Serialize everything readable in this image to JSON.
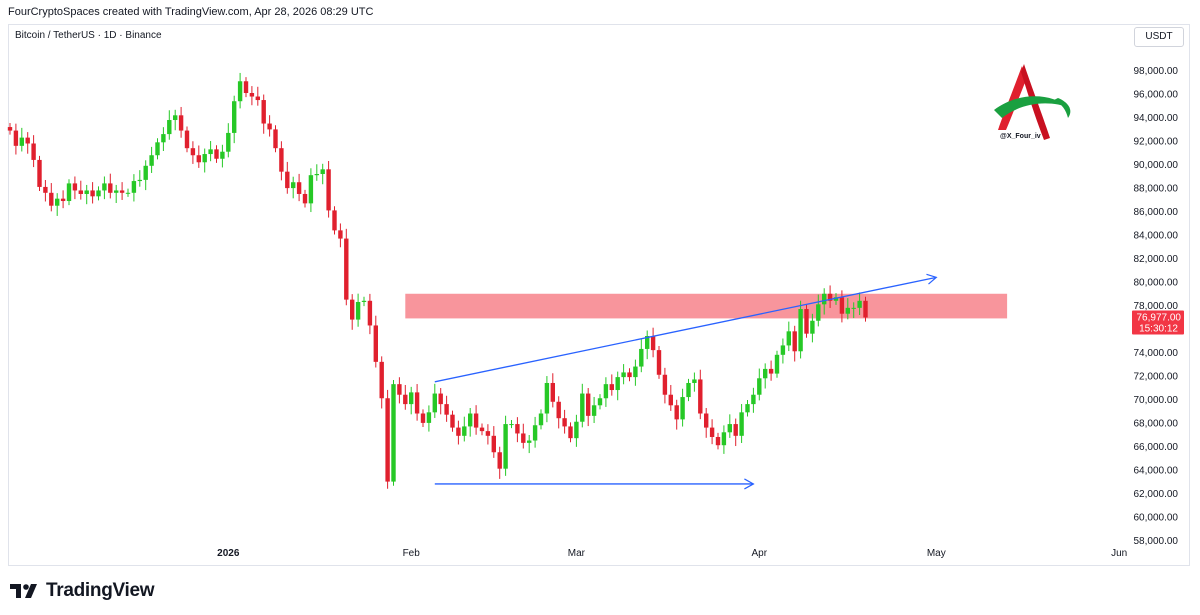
{
  "header": {
    "title": "FourCryptoSpaces created with TradingView.com, Apr 28, 2026 08:29 UTC"
  },
  "symbol_line": "Bitcoin / TetherUS · 1D · Binance",
  "currency": "USDT",
  "watermark": {
    "handle": "@X_Four_iv"
  },
  "footer": {
    "brand": "TradingView"
  },
  "colors": {
    "up": "#26c826",
    "down": "#e0202e",
    "trend": "#2962ff",
    "zone": "#f7838b",
    "price_tag": "#f23645"
  },
  "chart_data": {
    "type": "candlestick",
    "symbol": "BTCUSDT",
    "interval": "1D",
    "ylim": [
      58000,
      99000
    ],
    "y_ticks": [
      "98,000.00",
      "96,000.00",
      "94,000.00",
      "92,000.00",
      "90,000.00",
      "88,000.00",
      "86,000.00",
      "84,000.00",
      "82,000.00",
      "80,000.00",
      "78,000.00",
      "76,000.00",
      "74,000.00",
      "72,000.00",
      "70,000.00",
      "68,000.00",
      "66,000.00",
      "64,000.00",
      "62,000.00",
      "60,000.00",
      "58,000.00"
    ],
    "x_ticks": [
      {
        "label": "2026",
        "date": "2026-01-01",
        "bold": true
      },
      {
        "label": "Feb",
        "date": "2026-02-01",
        "bold": false
      },
      {
        "label": "Mar",
        "date": "2026-03-01",
        "bold": false
      },
      {
        "label": "Apr",
        "date": "2026-04-01",
        "bold": false
      },
      {
        "label": "May",
        "date": "2026-05-01",
        "bold": false
      },
      {
        "label": "Jun",
        "date": "2026-06-01",
        "bold": false
      }
    ],
    "start_date": "2025-11-25",
    "last_price": "76,977.00",
    "countdown": "15:30:12",
    "resistance_zone": [
      76900,
      79000
    ],
    "zone_end_date": "2026-05-13",
    "trendline_upper": {
      "from": {
        "date": "2026-02-05",
        "price": 71500
      },
      "to": {
        "date": "2026-05-01",
        "price": 80400
      }
    },
    "trendline_lower": {
      "from": {
        "date": "2026-02-05",
        "price": 62800
      },
      "to": {
        "date": "2026-03-31",
        "price": 62800
      }
    },
    "closes": [
      92900,
      91600,
      92300,
      91800,
      90400,
      88100,
      87600,
      86500,
      87100,
      86900,
      88400,
      87800,
      87500,
      87800,
      87300,
      87800,
      88400,
      87600,
      87800,
      87600,
      87600,
      88600,
      88700,
      89900,
      90800,
      91900,
      92600,
      93800,
      94200,
      92900,
      91400,
      90800,
      90200,
      90900,
      91300,
      90500,
      91100,
      92700,
      95400,
      97100,
      96100,
      95800,
      95500,
      93500,
      93000,
      91400,
      89400,
      88000,
      88500,
      87500,
      86700,
      89100,
      89200,
      89600,
      86100,
      84400,
      83700,
      78500,
      76800,
      78300,
      78400,
      76300,
      73200,
      70100,
      63000,
      71300,
      70400,
      69600,
      70600,
      68800,
      68000,
      68900,
      70500,
      69600,
      68700,
      67600,
      66900,
      67700,
      68800,
      67600,
      67300,
      66900,
      65500,
      64100,
      67900,
      67900,
      67100,
      66300,
      66500,
      67800,
      68800,
      71400,
      69800,
      68400,
      67700,
      66700,
      68100,
      70500,
      68600,
      69500,
      70100,
      71300,
      70800,
      71900,
      72300,
      71900,
      72800,
      74300,
      75400,
      74200,
      72100,
      70400,
      69500,
      68300,
      70200,
      71400,
      71700,
      68800,
      67600,
      66800,
      66100,
      67200,
      67900,
      66900,
      68900,
      69600,
      70400,
      71800,
      72600,
      72200,
      73800,
      74600,
      75800,
      74100,
      77700,
      75600,
      76700,
      78100,
      79000,
      78400,
      78700,
      77300,
      77800,
      77800,
      78400,
      76977
    ]
  }
}
